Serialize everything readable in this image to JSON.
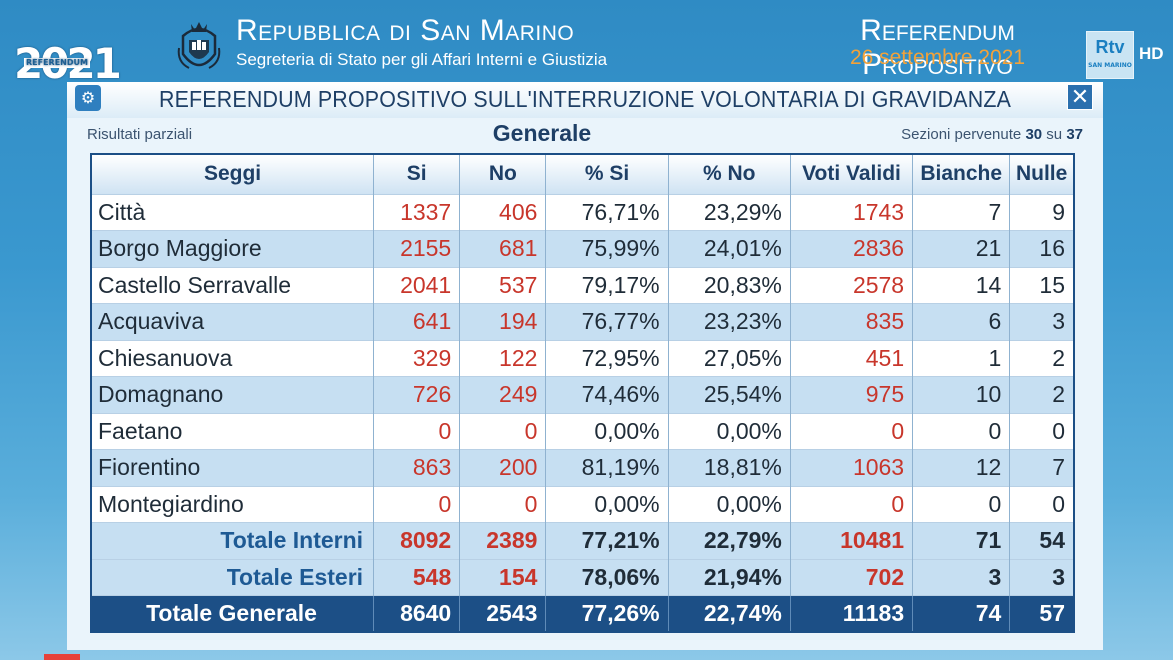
{
  "header": {
    "logo_year": "2021",
    "logo_caption": "REFERENDUM",
    "republic_title": "Repubblica di San Marino",
    "republic_subtitle": "Segreteria di Stato per gli Affari Interni e Giustizia",
    "referendum_title": "Referendum Propositivo",
    "referendum_date": "26 settembre 2021",
    "channel_logo": "Rtv",
    "channel_logo_sub": "SAN MARINO",
    "hd_badge": "HD"
  },
  "panel": {
    "title": "REFERENDUM PROPOSITIVO SULL'INTERRUZIONE VOLONTARIA DI GRAVIDANZA",
    "close_label": "✕",
    "partial_label": "Risultati parziali",
    "section_label": "Generale",
    "received_prefix": "Sezioni pervenute",
    "received_count": "30",
    "received_sep": "su",
    "received_total": "37"
  },
  "table": {
    "headers": [
      "Seggi",
      "Si",
      "No",
      "% Si",
      "% No",
      "Voti Validi",
      "Bianche",
      "Nulle"
    ],
    "rows": [
      {
        "name": "Città",
        "si": "1337",
        "no": "406",
        "pct_si": "76,71%",
        "pct_no": "23,29%",
        "validi": "1743",
        "bianche": "7",
        "nulle": "9"
      },
      {
        "name": "Borgo Maggiore",
        "si": "2155",
        "no": "681",
        "pct_si": "75,99%",
        "pct_no": "24,01%",
        "validi": "2836",
        "bianche": "21",
        "nulle": "16"
      },
      {
        "name": "Castello Serravalle",
        "si": "2041",
        "no": "537",
        "pct_si": "79,17%",
        "pct_no": "20,83%",
        "validi": "2578",
        "bianche": "14",
        "nulle": "15"
      },
      {
        "name": "Acquaviva",
        "si": "641",
        "no": "194",
        "pct_si": "76,77%",
        "pct_no": "23,23%",
        "validi": "835",
        "bianche": "6",
        "nulle": "3"
      },
      {
        "name": "Chiesanuova",
        "si": "329",
        "no": "122",
        "pct_si": "72,95%",
        "pct_no": "27,05%",
        "validi": "451",
        "bianche": "1",
        "nulle": "2"
      },
      {
        "name": "Domagnano",
        "si": "726",
        "no": "249",
        "pct_si": "74,46%",
        "pct_no": "25,54%",
        "validi": "975",
        "bianche": "10",
        "nulle": "2"
      },
      {
        "name": "Faetano",
        "si": "0",
        "no": "0",
        "pct_si": "0,00%",
        "pct_no": "0,00%",
        "validi": "0",
        "bianche": "0",
        "nulle": "0"
      },
      {
        "name": "Fiorentino",
        "si": "863",
        "no": "200",
        "pct_si": "81,19%",
        "pct_no": "18,81%",
        "validi": "1063",
        "bianche": "12",
        "nulle": "7"
      },
      {
        "name": "Montegiardino",
        "si": "0",
        "no": "0",
        "pct_si": "0,00%",
        "pct_no": "0,00%",
        "validi": "0",
        "bianche": "0",
        "nulle": "0"
      }
    ],
    "totals": [
      {
        "name": "Totale Interni",
        "si": "8092",
        "no": "2389",
        "pct_si": "77,21%",
        "pct_no": "22,79%",
        "validi": "10481",
        "bianche": "71",
        "nulle": "54"
      },
      {
        "name": "Totale Esteri",
        "si": "548",
        "no": "154",
        "pct_si": "78,06%",
        "pct_no": "21,94%",
        "validi": "702",
        "bianche": "3",
        "nulle": "3"
      }
    ],
    "grand_total": {
      "name": "Totale Generale",
      "si": "8640",
      "no": "2543",
      "pct_si": "77,26%",
      "pct_no": "22,74%",
      "validi": "11183",
      "bianche": "74",
      "nulle": "57"
    }
  }
}
